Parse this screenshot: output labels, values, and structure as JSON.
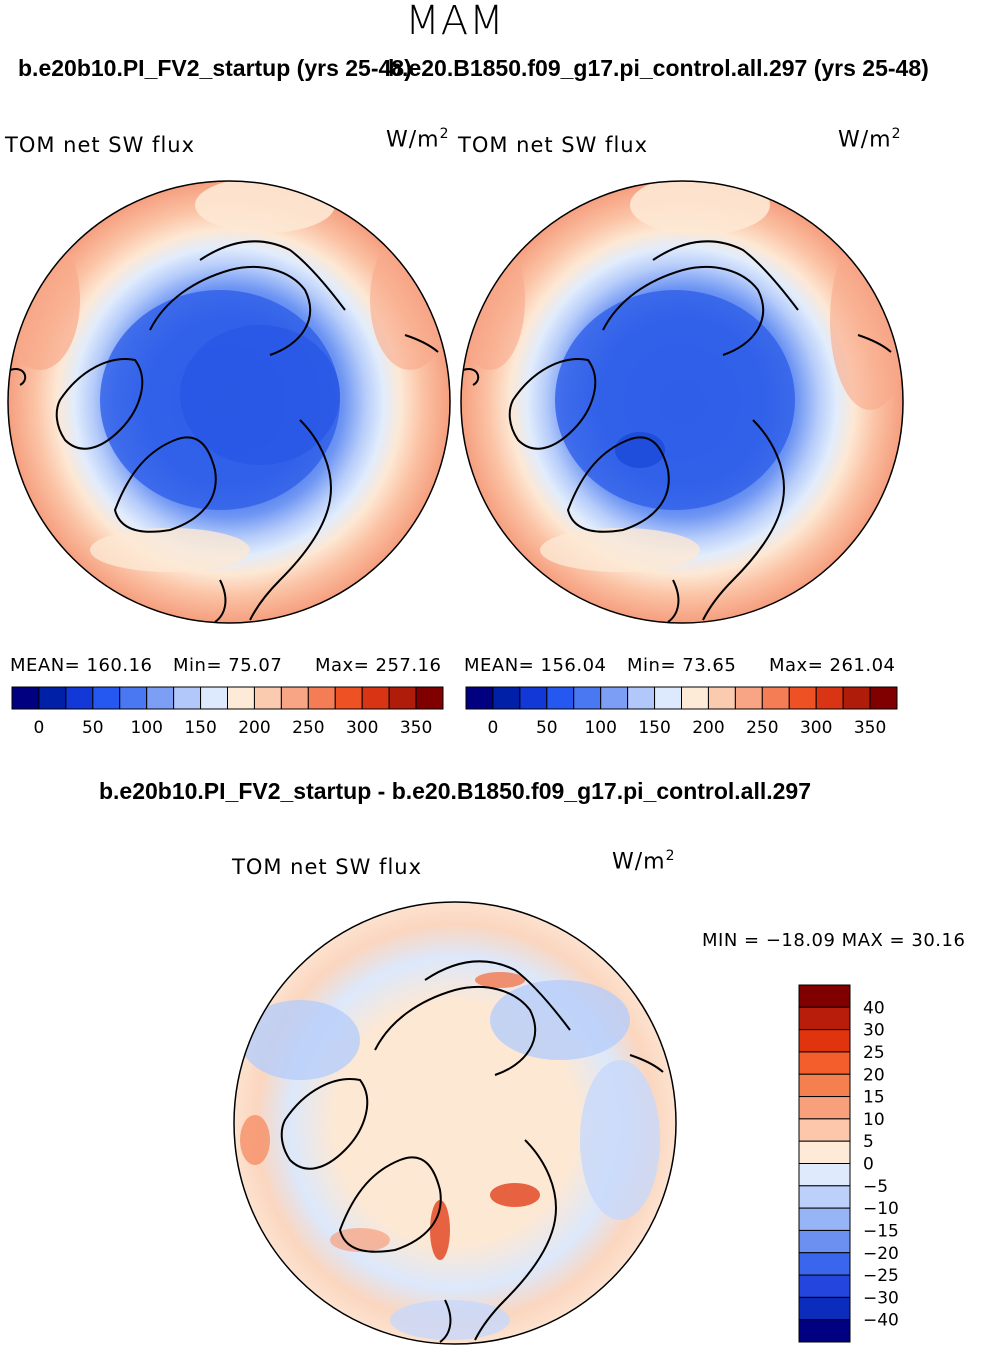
{
  "season": "MAM",
  "panels": [
    {
      "case_title": "b.e20b10.PI_FV2_startup (yrs 25-48)",
      "variable": "TOM net SW flux",
      "units": "W/m",
      "units_power": "2",
      "mean": "MEAN= 160.16",
      "min": "Min= 75.07",
      "max": "Max= 257.16"
    },
    {
      "case_title": "b.e20.B1850.f09_g17.pi_control.all.297 (yrs 25-48)",
      "variable": "TOM net SW flux",
      "units": "W/m",
      "units_power": "2",
      "mean": "MEAN= 156.04",
      "min": "Min= 73.65",
      "max": "Max= 261.04"
    }
  ],
  "horizontal_colorbar": {
    "colors": [
      "#000080",
      "#0020a8",
      "#1238d8",
      "#2458f0",
      "#4a78f2",
      "#7d9ef5",
      "#b2c8fa",
      "#dde9fc",
      "#fdebd7",
      "#fbcbb0",
      "#f7a585",
      "#f47d56",
      "#ee5124",
      "#d93515",
      "#b01c0a",
      "#800000"
    ],
    "labels": [
      "0",
      "50",
      "100",
      "150",
      "200",
      "250",
      "300",
      "350"
    ]
  },
  "difference": {
    "title": "b.e20b10.PI_FV2_startup - b.e20.B1850.f09_g17.pi_control.all.297",
    "variable": "TOM net SW flux",
    "units": "W/m",
    "units_power": "2",
    "min_max": "MIN = −18.09 MAX =   30.16",
    "colorbar": {
      "colors": [
        "#800000",
        "#b81d0c",
        "#e0340f",
        "#f35e2c",
        "#f5804f",
        "#f8a07c",
        "#fcc7ab",
        "#fdebd7",
        "#dfebfc",
        "#bcd0fa",
        "#96b4f6",
        "#6b90f2",
        "#3a66ee",
        "#2446de",
        "#0c2cbb",
        "#000080"
      ],
      "labels": [
        "40",
        "30",
        "25",
        "20",
        "15",
        "10",
        "5",
        "0",
        "−5",
        "−10",
        "−15",
        "−20",
        "−25",
        "−30",
        "−40"
      ]
    }
  }
}
